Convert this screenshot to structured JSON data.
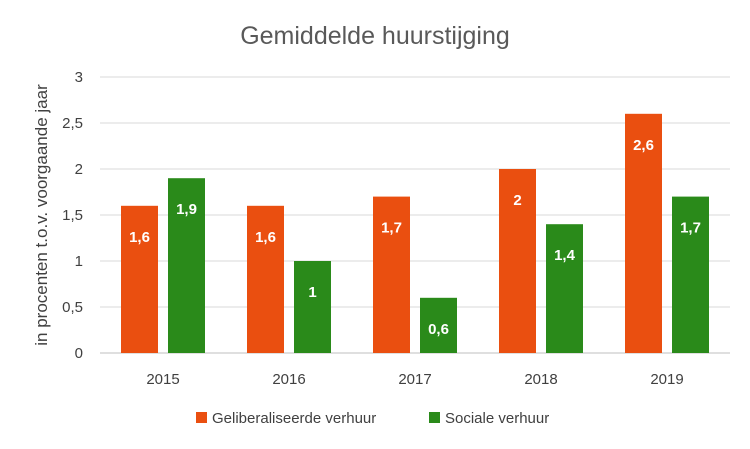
{
  "chart_data": {
    "type": "bar",
    "title": "Gemiddelde huurstijging",
    "ylabel": "in procenten t.o.v. voorgaande jaar",
    "xlabel": "",
    "categories": [
      "2015",
      "2016",
      "2017",
      "2018",
      "2019"
    ],
    "ylim": [
      0,
      3
    ],
    "yticks": [
      {
        "value": 0,
        "label": "0"
      },
      {
        "value": 0.5,
        "label": "0,5"
      },
      {
        "value": 1,
        "label": "1"
      },
      {
        "value": 1.5,
        "label": "1,5"
      },
      {
        "value": 2,
        "label": "2"
      },
      {
        "value": 2.5,
        "label": "2,5"
      },
      {
        "value": 3,
        "label": "3"
      }
    ],
    "grid": true,
    "legend_position": "bottom",
    "series": [
      {
        "name": "Geliberaliseerde verhuur",
        "color": "#ea4f10",
        "values": [
          1.6,
          1.6,
          1.7,
          2.0,
          2.6
        ],
        "labels": [
          "1,6",
          "1,6",
          "1,7",
          "2",
          "2,6"
        ]
      },
      {
        "name": "Sociale verhuur",
        "color": "#2a8a1a",
        "values": [
          1.9,
          1.0,
          0.6,
          1.4,
          1.7
        ],
        "labels": [
          "1,9",
          "1",
          "0,6",
          "1,4",
          "1,7"
        ]
      }
    ]
  }
}
